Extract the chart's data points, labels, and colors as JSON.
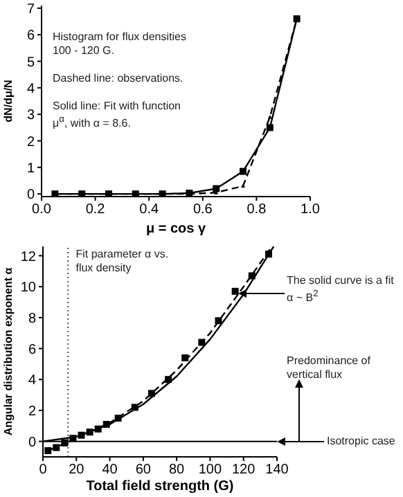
{
  "chart_data": [
    {
      "type": "line",
      "xlabel": "μ = cos γ",
      "ylabel": "dN/dμ/N",
      "annotations": [
        "Histogram for flux densities 100 - 120 G.",
        "Dashed line: observations.",
        "Solid line: Fit with function μ$^{α}$, with α = 8.6."
      ],
      "xlim": [
        0,
        1
      ],
      "ylim": [
        -0.1,
        7.1
      ],
      "xticks": [
        {
          "value": 0,
          "label": "0.0"
        },
        0.2,
        0.4,
        0.6,
        0.8,
        {
          "value": 1,
          "label": "1.0"
        }
      ],
      "yticks": [
        0,
        1,
        2,
        3,
        4,
        5,
        6,
        7
      ],
      "x": [
        0.05,
        0.15,
        0.25,
        0.35,
        0.45,
        0.55,
        0.65,
        0.75,
        0.85,
        0.95
      ],
      "series": [
        {
          "color": "#000000",
          "line_style": "solid",
          "marker": "square",
          "values": [
            0,
            0,
            0,
            0,
            0,
            0.03,
            0.2,
            0.85,
            2.5,
            6.6
          ]
        },
        {
          "color": "#000000",
          "line_style": "dashed",
          "marker": "triangle",
          "values": [
            0,
            0,
            0,
            0,
            0,
            0,
            0.05,
            0.3,
            2.9,
            6.6
          ]
        }
      ]
    },
    {
      "type": "scatter",
      "xlabel": "Total field strength (G)",
      "ylabel": "Angular distribution exponent α",
      "annotations": [
        "Fit parameter α vs. flux density",
        "The solid curve is a fit α ~ B$^{2}$",
        "Predominance of vertical flux",
        "Isotropic case"
      ],
      "xlim": [
        0,
        140
      ],
      "ylim": [
        -1,
        12.6
      ],
      "xticks": [
        0,
        20,
        40,
        60,
        80,
        100,
        120,
        140
      ],
      "yticks": [
        0,
        2,
        4,
        6,
        8,
        10,
        12
      ],
      "marker": "square",
      "ref_lines": [
        {
          "axis": "x",
          "value": 15,
          "color": "#555555",
          "line_style": "dotted"
        },
        {
          "axis": "y",
          "value": 0,
          "color": "#000000",
          "line_style": "solid"
        }
      ],
      "series": [
        {
          "color": "#000000",
          "x": [
            3,
            8,
            13,
            18,
            23,
            28,
            33,
            38,
            45,
            55,
            65,
            75,
            85,
            95,
            105,
            115,
            125,
            135
          ],
          "values": [
            -0.6,
            -0.4,
            -0.1,
            0.2,
            0.4,
            0.6,
            0.8,
            1.1,
            1.5,
            2.2,
            3.1,
            4.0,
            5.4,
            6.4,
            7.8,
            9.7,
            10.7,
            12.1
          ]
        },
        {
          "type": "line",
          "color": "#000000",
          "line_style": "solid",
          "marker": "none",
          "x": [
            0,
            20,
            40,
            60,
            80,
            100,
            120,
            138
          ],
          "values": [
            0,
            0.3,
            1.1,
            2.4,
            4.2,
            6.6,
            9.5,
            12.6
          ]
        },
        {
          "type": "line",
          "color": "#000000",
          "line_style": "dashed",
          "marker": "none",
          "x": [
            3,
            20,
            40,
            60,
            80,
            100,
            120,
            137
          ],
          "values": [
            -0.6,
            0.2,
            1.2,
            2.6,
            4.6,
            7.0,
            10.0,
            12.6
          ]
        }
      ]
    }
  ]
}
